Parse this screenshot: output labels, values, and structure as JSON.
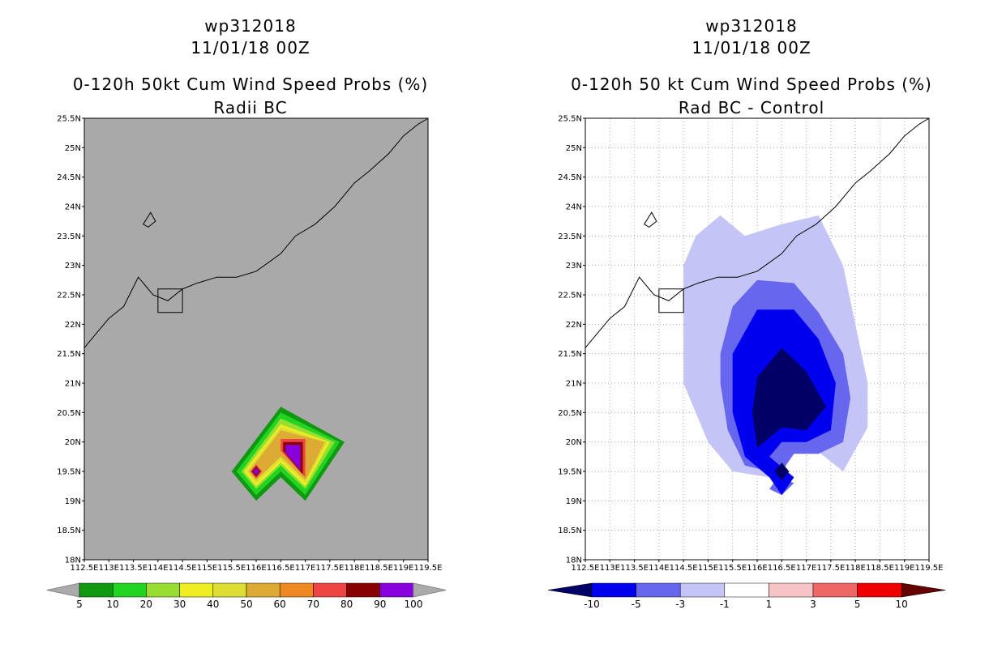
{
  "chart_data": [
    {
      "type": "contour-map",
      "storm_id": "wp312018",
      "date": "11/01/18 00Z",
      "title": "0-120h 50kt Cum Wind Speed Probs (%)",
      "subtitle": "Radii BC",
      "background": "#a9a9a9",
      "lon_range": [
        112.5,
        119.5
      ],
      "lat_range": [
        18,
        25.5
      ],
      "x_ticks": [
        "112.5E",
        "113E",
        "113.5E",
        "114E",
        "114.5E",
        "115E",
        "115.5E",
        "116E",
        "116.5E",
        "117E",
        "117.5E",
        "118E",
        "118.5E",
        "119E",
        "119.5E"
      ],
      "y_ticks": [
        "18N",
        "18.5N",
        "19N",
        "19.5N",
        "20N",
        "20.5N",
        "21N",
        "21.5N",
        "22N",
        "22.5N",
        "23N",
        "23.5N",
        "24N",
        "24.5N",
        "25N",
        "25.5N"
      ],
      "grid": false,
      "colorbar": {
        "labels": [
          "5",
          "10",
          "20",
          "30",
          "40",
          "50",
          "60",
          "70",
          "80",
          "90",
          "100"
        ],
        "colors": [
          "#109910",
          "#22d422",
          "#99dd33",
          "#eeee22",
          "#dddd33",
          "#ddaa33",
          "#ee8822",
          "#ee4444",
          "#880000",
          "#8800dd"
        ]
      },
      "contours": [
        {
          "level": 5,
          "color": "#109910",
          "points": [
            [
              116,
              19
            ],
            [
              116.5,
              19.4
            ],
            [
              117,
              19
            ],
            [
              117.8,
              20
            ],
            [
              116.5,
              20.6
            ],
            [
              115.5,
              19.5
            ]
          ]
        },
        {
          "level": 10,
          "color": "#22d422",
          "points": [
            [
              116,
              19.1
            ],
            [
              116.5,
              19.5
            ],
            [
              117,
              19.1
            ],
            [
              117.7,
              20
            ],
            [
              116.5,
              20.5
            ],
            [
              115.6,
              19.5
            ]
          ]
        },
        {
          "level": 20,
          "color": "#99dd33",
          "points": [
            [
              116,
              19.2
            ],
            [
              116.5,
              19.6
            ],
            [
              117,
              19.2
            ],
            [
              117.6,
              20
            ],
            [
              116.5,
              20.4
            ],
            [
              115.7,
              19.5
            ]
          ]
        },
        {
          "level": 30,
          "color": "#eeee22",
          "points": [
            [
              116,
              19.25
            ],
            [
              116.5,
              19.65
            ],
            [
              117,
              19.25
            ],
            [
              117.5,
              20
            ],
            [
              116.5,
              20.3
            ],
            [
              115.75,
              19.5
            ]
          ]
        },
        {
          "level": 40,
          "color": "#dddd33",
          "points": [
            [
              116,
              19.3
            ],
            [
              116.5,
              19.7
            ],
            [
              117,
              19.3
            ],
            [
              117.45,
              20
            ],
            [
              116.5,
              20.25
            ],
            [
              115.8,
              19.5
            ]
          ]
        },
        {
          "level": 50,
          "color": "#ddaa33",
          "points": [
            [
              116,
              19.35
            ],
            [
              116.5,
              19.75
            ],
            [
              117,
              19.35
            ],
            [
              117.4,
              20
            ],
            [
              116.5,
              20.2
            ],
            [
              115.85,
              19.5
            ]
          ]
        },
        {
          "level": 70,
          "color": "#ee4444",
          "points": [
            [
              116.5,
              20.05
            ],
            [
              117,
              20.05
            ],
            [
              117,
              19.4
            ],
            [
              116.5,
              19.85
            ]
          ]
        },
        {
          "level": 70,
          "color": "#ee4444",
          "points": [
            [
              116,
              19.38
            ],
            [
              116.12,
              19.5
            ],
            [
              116,
              19.62
            ],
            [
              115.88,
              19.5
            ]
          ]
        },
        {
          "level": 90,
          "color": "#880000",
          "points": [
            [
              116.55,
              20
            ],
            [
              116.95,
              20
            ],
            [
              116.95,
              19.45
            ],
            [
              116.55,
              19.85
            ]
          ]
        },
        {
          "level": 90,
          "color": "#880000",
          "points": [
            [
              116,
              19.41
            ],
            [
              116.09,
              19.5
            ],
            [
              116,
              19.59
            ],
            [
              115.91,
              19.5
            ]
          ]
        },
        {
          "level": 100,
          "color": "#8800dd",
          "points": [
            [
              116.6,
              19.95
            ],
            [
              116.9,
              19.95
            ],
            [
              116.9,
              19.52
            ],
            [
              116.6,
              19.82
            ]
          ]
        },
        {
          "level": 100,
          "color": "#8800dd",
          "points": [
            [
              116,
              19.44
            ],
            [
              116.06,
              19.5
            ],
            [
              116,
              19.56
            ],
            [
              115.94,
              19.5
            ]
          ]
        }
      ]
    },
    {
      "type": "contour-map",
      "storm_id": "wp312018",
      "date": "11/01/18 00Z",
      "title": "0-120h 50 kt Cum Wind Speed Probs (%)",
      "subtitle": "Rad BC - Control",
      "background": "#ffffff",
      "lon_range": [
        112.5,
        119.5
      ],
      "lat_range": [
        18,
        25.5
      ],
      "x_ticks": [
        "112.5E",
        "113E",
        "113.5E",
        "114E",
        "114.5E",
        "115E",
        "115.5E",
        "116E",
        "116.5E",
        "117E",
        "117.5E",
        "118E",
        "118.5E",
        "119E",
        "119.5E"
      ],
      "y_ticks": [
        "18N",
        "18.5N",
        "19N",
        "19.5N",
        "20N",
        "20.5N",
        "21N",
        "21.5N",
        "22N",
        "22.5N",
        "23N",
        "23.5N",
        "24N",
        "24.5N",
        "25N",
        "25.5N"
      ],
      "grid": true,
      "colorbar": {
        "labels": [
          "-10",
          "-5",
          "-3",
          "-1",
          "1",
          "3",
          "5",
          "10"
        ],
        "colors": [
          "#000066",
          "#0000ee",
          "#6666ee",
          "#c4c4f6",
          "#ffffff",
          "#f6c4c4",
          "#ee6666",
          "#ee0000",
          "#660000"
        ]
      },
      "contours": [
        {
          "level": -1,
          "color": "#c4c4f6",
          "points": [
            [
              114.5,
              23
            ],
            [
              114.75,
              23.5
            ],
            [
              115.25,
              23.85
            ],
            [
              115.75,
              23.5
            ],
            [
              116.5,
              23.7
            ],
            [
              117.25,
              23.85
            ],
            [
              117.75,
              23
            ],
            [
              118,
              22
            ],
            [
              118.25,
              21
            ],
            [
              118.25,
              20.25
            ],
            [
              117.75,
              19.5
            ],
            [
              117,
              20
            ],
            [
              116.5,
              19.6
            ],
            [
              116.25,
              19.4
            ],
            [
              115.5,
              19.5
            ],
            [
              115,
              20
            ],
            [
              114.5,
              21
            ],
            [
              114.5,
              21.75
            ],
            [
              114.5,
              22.5
            ]
          ]
        },
        {
          "level": -3,
          "color": "#6666ee",
          "points": [
            [
              115.25,
              21.5
            ],
            [
              115.5,
              22.3
            ],
            [
              116,
              22.75
            ],
            [
              116.75,
              22.7
            ],
            [
              117.25,
              22.2
            ],
            [
              117.75,
              21.5
            ],
            [
              117.9,
              20.75
            ],
            [
              117.75,
              20
            ],
            [
              117.25,
              19.8
            ],
            [
              116.75,
              19.8
            ],
            [
              116.25,
              19.2
            ],
            [
              116.5,
              19.1
            ],
            [
              116.75,
              19.3
            ],
            [
              116.25,
              19.5
            ],
            [
              115.75,
              19.6
            ],
            [
              115.4,
              20.2
            ],
            [
              115.25,
              21
            ]
          ]
        },
        {
          "level": -5,
          "color": "#0000ee",
          "points": [
            [
              115.5,
              21.5
            ],
            [
              116,
              22.25
            ],
            [
              116.75,
              22.25
            ],
            [
              117.25,
              21.75
            ],
            [
              117.6,
              21
            ],
            [
              117.5,
              20.2
            ],
            [
              117,
              20
            ],
            [
              116.5,
              20
            ],
            [
              116.25,
              19.75
            ],
            [
              116.75,
              19.4
            ],
            [
              116.5,
              19.1
            ],
            [
              116.25,
              19.4
            ],
            [
              115.75,
              19.75
            ],
            [
              115.5,
              20.5
            ]
          ]
        },
        {
          "level": -10,
          "color": "#000066",
          "points": [
            [
              116,
              21.1
            ],
            [
              116.5,
              21.6
            ],
            [
              117,
              21.2
            ],
            [
              117.4,
              20.6
            ],
            [
              117,
              20.2
            ],
            [
              116.5,
              20.25
            ],
            [
              116,
              19.9
            ],
            [
              115.9,
              20.5
            ]
          ]
        },
        {
          "level": -10,
          "color": "#000066",
          "points": [
            [
              116.5,
              19.35
            ],
            [
              116.65,
              19.5
            ],
            [
              116.5,
              19.65
            ],
            [
              116.35,
              19.5
            ]
          ]
        }
      ]
    }
  ]
}
